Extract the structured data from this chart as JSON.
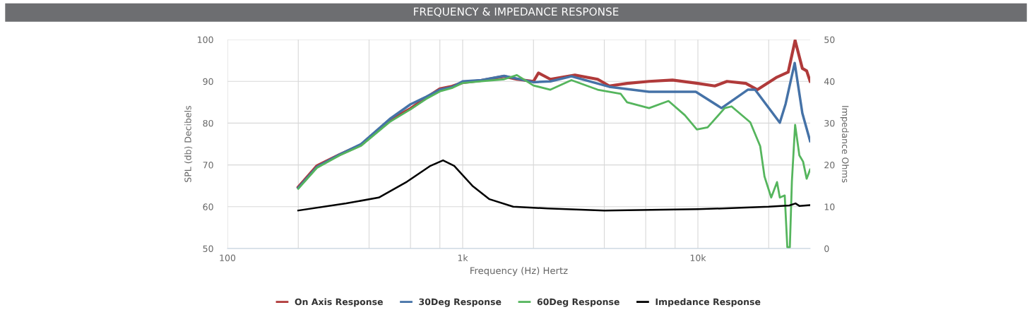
{
  "chart_data": {
    "type": "line",
    "title": "FREQUENCY & IMPEDANCE RESPONSE",
    "xlabel": "Frequency (Hz) Hertz",
    "ylabel": "SPL (db) Decibels",
    "y2label": "Impedance Ohms",
    "log": "x",
    "grid": true,
    "legend": "bottom",
    "marker": "none",
    "line_style": "solid",
    "xlim": [
      100,
      30000
    ],
    "xticks": [
      {
        "value": 100,
        "label": "100"
      },
      {
        "value": 200,
        "label": null
      },
      {
        "value": 400,
        "label": null
      },
      {
        "value": 600,
        "label": null
      },
      {
        "value": 800,
        "label": null
      },
      {
        "value": 1000,
        "label": "1k"
      },
      {
        "value": 2000,
        "label": null
      },
      {
        "value": 4000,
        "label": null
      },
      {
        "value": 6000,
        "label": null
      },
      {
        "value": 8000,
        "label": null
      },
      {
        "value": 10000,
        "label": "10k"
      },
      {
        "value": 20000,
        "label": null
      }
    ],
    "ylim": [
      50,
      100
    ],
    "yticks": [
      50,
      60,
      70,
      80,
      90,
      100
    ],
    "y2lim": [
      0,
      50
    ],
    "y2ticks": [
      0,
      10,
      20,
      30,
      40,
      50
    ],
    "series": [
      {
        "name": "On Axis Response",
        "color": "#b03a3a",
        "x": [
          200,
          240,
          300,
          370,
          490,
          600,
          700,
          800,
          900,
          1000,
          1200,
          1500,
          1700,
          2000,
          2100,
          2360,
          3000,
          3750,
          4200,
          5000,
          6200,
          7800,
          10000,
          11800,
          13300,
          16000,
          17900,
          21500,
          24200,
          25900,
          27800,
          29000,
          30000
        ],
        "values": [
          64.7,
          69.8,
          72.5,
          74.8,
          80.7,
          83.5,
          86.1,
          88.2,
          88.8,
          89.7,
          90.2,
          91.2,
          90.5,
          90.0,
          92.0,
          90.5,
          91.5,
          90.5,
          88.9,
          89.5,
          90.0,
          90.3,
          89.5,
          88.9,
          90.0,
          89.5,
          88.0,
          90.9,
          92.2,
          99.8,
          93.1,
          92.5,
          90.0
        ]
      },
      {
        "name": "30Deg Response",
        "color": "#4572a7",
        "x": [
          200,
          240,
          300,
          370,
          490,
          600,
          700,
          800,
          900,
          1000,
          1200,
          1500,
          2000,
          2360,
          2900,
          4200,
          6200,
          9800,
          12600,
          16300,
          17500,
          22300,
          23600,
          25800,
          27800,
          30000
        ],
        "values": [
          64.5,
          69.5,
          72.5,
          75.0,
          81.0,
          84.5,
          86.3,
          88.0,
          88.6,
          90.0,
          90.3,
          91.3,
          89.8,
          90.0,
          91.2,
          88.7,
          87.5,
          87.5,
          83.6,
          88.0,
          88.0,
          80.1,
          84.6,
          94.4,
          82.4,
          75.7
        ]
      },
      {
        "name": "60Deg Response",
        "color": "#55b55d",
        "x": [
          200,
          240,
          300,
          370,
          490,
          600,
          700,
          800,
          900,
          1000,
          1200,
          1500,
          1700,
          2000,
          2360,
          2900,
          3750,
          4700,
          5000,
          6200,
          7500,
          8800,
          9900,
          11000,
          13000,
          13900,
          16700,
          18400,
          19200,
          20500,
          21700,
          22300,
          23400,
          24000,
          24600,
          25100,
          25900,
          27000,
          28000,
          29000,
          30000
        ],
        "values": [
          64.3,
          69.3,
          72.3,
          74.6,
          80.3,
          83.3,
          85.8,
          87.6,
          88.4,
          89.6,
          90.0,
          90.5,
          91.5,
          89.0,
          88.0,
          90.3,
          88.0,
          87.0,
          85.0,
          83.6,
          85.3,
          81.9,
          78.5,
          79.0,
          83.6,
          84.0,
          80.2,
          74.5,
          67.2,
          62.2,
          65.9,
          62.2,
          62.7,
          50.3,
          50.3,
          66.1,
          79.6,
          72.3,
          70.8,
          66.7,
          68.9
        ]
      },
      {
        "name": "Impedance Response",
        "color": "#000000",
        "axis": "y2",
        "x": [
          200,
          320,
          440,
          580,
          730,
          825,
          920,
          1100,
          1300,
          1640,
          2300,
          4000,
          10000,
          20000,
          24500,
          26000,
          27000,
          30000
        ],
        "values": [
          9.1,
          10.8,
          12.2,
          16.0,
          19.8,
          21.1,
          19.8,
          15.0,
          11.8,
          10.0,
          9.6,
          9.1,
          9.4,
          10.0,
          10.3,
          10.8,
          10.2,
          10.4
        ]
      }
    ]
  }
}
